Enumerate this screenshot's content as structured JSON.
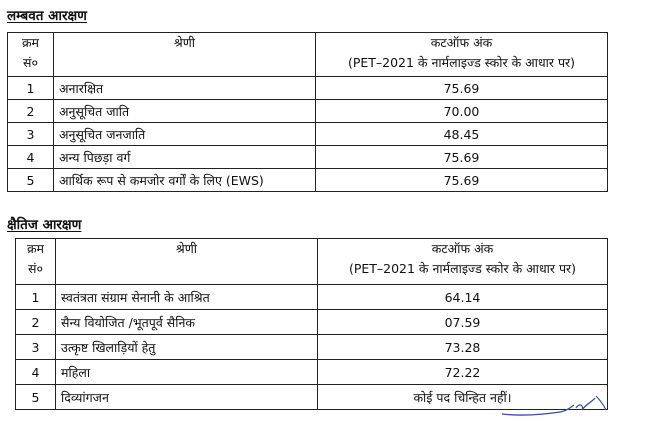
{
  "sections": [
    {
      "title": "लम्बवत आरक्षण",
      "headers": {
        "sno_line1": "क्रम",
        "sno_line2": "सं०",
        "category": "श्रेणी",
        "cutoff_line1": "कटऑफ अंक",
        "cutoff_line2": "(PET–2021 के नार्मलाइज्ड स्कोर के आधार पर)"
      },
      "rows": [
        {
          "sno": "1",
          "category": "अनारक्षित",
          "cutoff": "75.69"
        },
        {
          "sno": "2",
          "category": "अनुसूचित जाति",
          "cutoff": "70.00"
        },
        {
          "sno": "3",
          "category": "अनुसूचित जनजाति",
          "cutoff": "48.45"
        },
        {
          "sno": "4",
          "category": "अन्य पिछड़ा वर्ग",
          "cutoff": "75.69"
        },
        {
          "sno": "5",
          "category": "आर्थिक रूप से कमजोर वर्गों के लिए (EWS)",
          "cutoff": "75.69"
        }
      ]
    },
    {
      "title": "क्षैतिज आरक्षण",
      "headers": {
        "sno_line1": "क्रम",
        "sno_line2": "सं०",
        "category": "श्रेणी",
        "cutoff_line1": "कटऑफ अंक",
        "cutoff_line2": "(PET–2021 के नार्मलाइज्ड स्कोर के आधार पर)"
      },
      "rows": [
        {
          "sno": "1",
          "category": "स्वतंत्रता संग्राम सेनानी के आश्रित",
          "cutoff": "64.14"
        },
        {
          "sno": "2",
          "category": "सैन्य वियोजित /भूतपूर्व सैनिक",
          "cutoff": "07.59"
        },
        {
          "sno": "3",
          "category": "उत्कृष्ट खिलाड़ियों हेतु",
          "cutoff": "73.28"
        },
        {
          "sno": "4",
          "category": "महिला",
          "cutoff": "72.22"
        },
        {
          "sno": "5",
          "category": "दिव्यांगजन",
          "cutoff": "कोई पद चिन्हित नहीं।"
        }
      ]
    }
  ]
}
